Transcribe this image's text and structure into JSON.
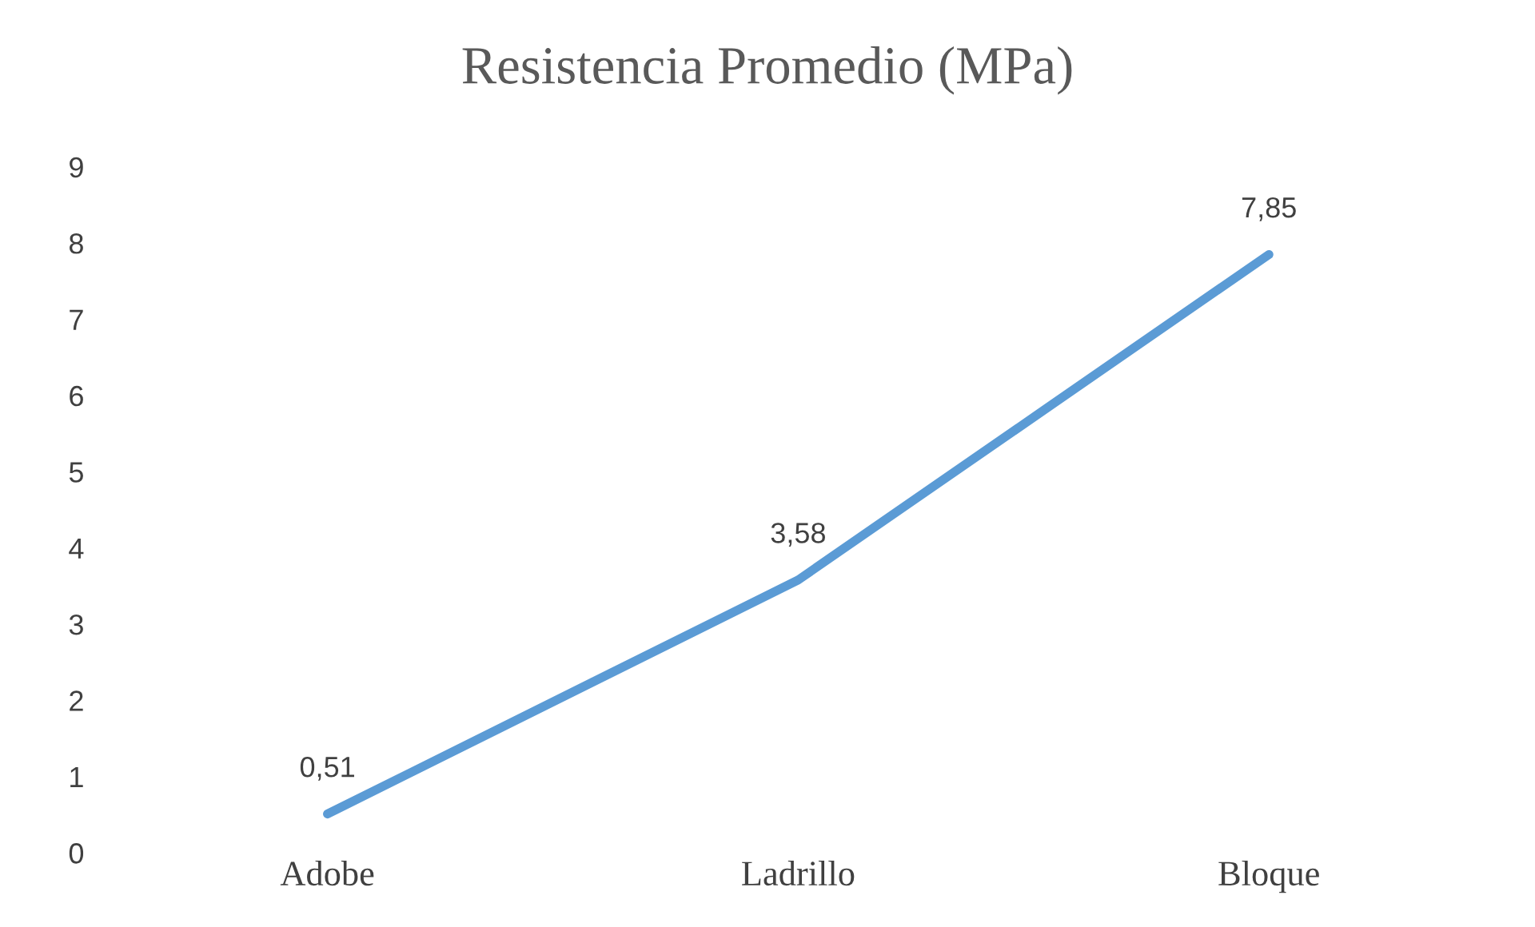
{
  "chart_data": {
    "type": "line",
    "title": "Resistencia Promedio (MPa)",
    "categories": [
      "Adobe",
      "Ladrillo",
      "Bloque"
    ],
    "series": [
      {
        "color": "#5b9bd5",
        "values": [
          0.51,
          3.58,
          7.85
        ],
        "value_labels": [
          "0,51",
          "3,58",
          "7,85"
        ]
      }
    ],
    "ylim": [
      0,
      9
    ],
    "yticks": [
      0,
      1,
      2,
      3,
      4,
      5,
      6,
      7,
      8,
      9
    ],
    "grid": false,
    "marker": "none",
    "line_style": "solid"
  }
}
